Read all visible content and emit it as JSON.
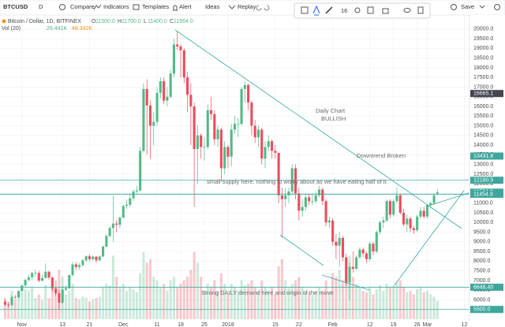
{
  "toolbar": {
    "symbol": "BTCUSD",
    "interval": "D",
    "items": [
      "Compare",
      "Indicators",
      "Templates",
      "Alert",
      "Ideas",
      "Replay"
    ],
    "save": "Save",
    "font_size": "16"
  },
  "chart_data": {
    "type": "candlestick",
    "legend": {
      "symbol": "Bitcoin / Dollar, 1D, BITFINEX",
      "ohlc": [
        {
          "key": "O",
          "text": "11500.0"
        },
        {
          "key": "H",
          "text": "11700.0"
        },
        {
          "key": "L",
          "text": "11400.0"
        },
        {
          "key": "C",
          "text": "11564.0"
        }
      ],
      "volume": "Vol (20)",
      "volume_values": [
        "26.441K",
        "48.342K"
      ]
    },
    "up_color": "#53b987",
    "down_color": "#eb4d5c",
    "xlim": [
      -1.5,
      137.5
    ],
    "ylim": [
      5000,
      20400
    ],
    "xticks": [
      {
        "value": 5,
        "label": "Nov"
      },
      {
        "value": 17,
        "label": "13"
      },
      {
        "value": 25,
        "label": "21"
      },
      {
        "value": 35,
        "label": "Dec"
      },
      {
        "value": 45,
        "label": "11"
      },
      {
        "value": 52,
        "label": "18"
      },
      {
        "value": 59,
        "label": "25"
      },
      {
        "value": 66,
        "label": "2018"
      },
      {
        "value": 80,
        "label": "15"
      },
      {
        "value": 87,
        "label": "22"
      },
      {
        "value": 97,
        "label": "Feb"
      },
      {
        "value": 108,
        "label": "12"
      },
      {
        "value": 115,
        "label": "19"
      },
      {
        "value": 122,
        "label": "26"
      },
      {
        "value": 125,
        "label": "Mar"
      },
      {
        "value": 136,
        "label": "12"
      }
    ],
    "yticks": [
      {
        "value": 5500,
        "label": "5500.0"
      },
      {
        "value": 6000,
        "label": "6000.0"
      },
      {
        "value": 6500,
        "label": "6500.0"
      },
      {
        "value": 7000,
        "label": "7000.0"
      },
      {
        "value": 7500,
        "label": "7500.0"
      },
      {
        "value": 8000,
        "label": "8000.0"
      },
      {
        "value": 8500,
        "label": "8500.0"
      },
      {
        "value": 9000,
        "label": "9000.0"
      },
      {
        "value": 9500,
        "label": "9500.0"
      },
      {
        "value": 10000,
        "label": "10000.0"
      },
      {
        "value": 10500,
        "label": "10500.0"
      },
      {
        "value": 11000,
        "label": "11000.0"
      },
      {
        "value": 11500,
        "label": "11500.0"
      },
      {
        "value": 12000,
        "label": "12000.0"
      },
      {
        "value": 12500,
        "label": "12500.0"
      },
      {
        "value": 13000,
        "label": "13000.0"
      },
      {
        "value": 13500,
        "label": "13500.0"
      },
      {
        "value": 14000,
        "label": "14000.0"
      },
      {
        "value": 14500,
        "label": "14500.0"
      },
      {
        "value": 15000,
        "label": "15000.0"
      },
      {
        "value": 15500,
        "label": "15500.0"
      },
      {
        "value": 16000,
        "label": "16000.0"
      },
      {
        "value": 16500,
        "label": "16500.0"
      },
      {
        "value": 17000,
        "label": "17000.0"
      },
      {
        "value": 17500,
        "label": "17500.0"
      },
      {
        "value": 18000,
        "label": "18000.0"
      },
      {
        "value": 18500,
        "label": "18500.0"
      },
      {
        "value": 19000,
        "label": "19000.0"
      },
      {
        "value": 19500,
        "label": "19500.0"
      },
      {
        "value": 20000,
        "label": "20000.0"
      }
    ],
    "price_labels": [
      {
        "value": 16665.1,
        "label": "16665.1",
        "color": "#434651",
        "line": false
      },
      {
        "value": 13431.8,
        "label": "13431.8",
        "color": "#3ea69c",
        "line": false
      },
      {
        "value": 12180.5,
        "label": "12180.5",
        "color": "#3ea69c",
        "line": true
      },
      {
        "value": 11564.0,
        "label": "11564.0",
        "color": "#3ea69c",
        "line": false
      },
      {
        "value": 11454.9,
        "label": "11454.9",
        "color": "#3ea69c",
        "line": true
      },
      {
        "value": 6648.4,
        "label": "6648.40",
        "color": "#3ea69c",
        "line": true
      },
      {
        "value": 5500.0,
        "label": "5500.0",
        "color": "#3ea69c",
        "line": true
      }
    ],
    "annotations": [
      "Daily Chart",
      "BULLISH",
      "Downtrend Broken",
      "small supply here. nothing to worry about as we have eating half of it",
      "Strong DAILY demand here and origin of the move"
    ],
    "candles": [
      [
        5900,
        6000,
        5680,
        5750
      ],
      [
        5750,
        5850,
        5600,
        5720
      ],
      [
        5720,
        6250,
        5700,
        6150
      ],
      [
        6150,
        6250,
        6050,
        6120
      ],
      [
        6120,
        6480,
        6100,
        6450
      ],
      [
        6450,
        6800,
        6400,
        6740
      ],
      [
        6740,
        7100,
        6700,
        7030
      ],
      [
        7030,
        7300,
        6950,
        7160
      ],
      [
        7160,
        7450,
        7000,
        7380
      ],
      [
        7380,
        7550,
        7200,
        7390
      ],
      [
        7390,
        7500,
        6900,
        6990
      ],
      [
        6990,
        7300,
        6950,
        7130
      ],
      [
        7130,
        7880,
        7100,
        7450
      ],
      [
        7450,
        7500,
        7050,
        7150
      ],
      [
        7150,
        7200,
        6450,
        6580
      ],
      [
        6580,
        6650,
        6200,
        6340
      ],
      [
        6340,
        6500,
        5500,
        5850
      ],
      [
        5850,
        6700,
        5800,
        6520
      ],
      [
        6520,
        6750,
        6450,
        6600
      ],
      [
        6600,
        7300,
        6550,
        7280
      ],
      [
        7280,
        7950,
        7200,
        7830
      ],
      [
        7830,
        7950,
        7550,
        7690
      ],
      [
        7690,
        7900,
        7550,
        7790
      ],
      [
        7790,
        8100,
        7700,
        8040
      ],
      [
        8040,
        8300,
        7950,
        8250
      ],
      [
        8250,
        8350,
        8000,
        8100
      ],
      [
        8100,
        8300,
        8050,
        8230
      ],
      [
        8230,
        8250,
        7900,
        8040
      ],
      [
        8040,
        8300,
        8000,
        8240
      ],
      [
        8240,
        8800,
        8200,
        8750
      ],
      [
        8750,
        9400,
        8700,
        9300
      ],
      [
        9300,
        9800,
        9250,
        9710
      ],
      [
        9710,
        11400,
        9000,
        9940
      ],
      [
        9940,
        10100,
        9500,
        9880
      ],
      [
        9880,
        10300,
        9700,
        10250
      ],
      [
        10250,
        10900,
        10200,
        10850
      ],
      [
        10850,
        11200,
        10700,
        10910
      ],
      [
        10910,
        11500,
        10800,
        11250
      ],
      [
        11250,
        11700,
        11100,
        11600
      ],
      [
        11600,
        11900,
        11500,
        11650
      ],
      [
        11650,
        13900,
        11600,
        13700
      ],
      [
        13700,
        17200,
        13600,
        16900
      ],
      [
        16900,
        17400,
        13500,
        16050
      ],
      [
        16050,
        16300,
        13300,
        15000
      ],
      [
        15000,
        15700,
        14000,
        15200
      ],
      [
        15200,
        17000,
        15000,
        16700
      ],
      [
        16700,
        17500,
        16400,
        17300
      ],
      [
        17300,
        17500,
        16100,
        16300
      ],
      [
        16300,
        17000,
        16000,
        16500
      ],
      [
        16500,
        17900,
        16400,
        17700
      ],
      [
        17700,
        19500,
        17500,
        19200
      ],
      [
        19200,
        19900,
        18900,
        19100
      ],
      [
        19100,
        19200,
        17500,
        18900
      ],
      [
        18900,
        19000,
        17200,
        17500
      ],
      [
        17500,
        17800,
        15700,
        16600
      ],
      [
        16600,
        17200,
        14000,
        16000
      ],
      [
        16000,
        16200,
        10800,
        13800
      ],
      [
        13800,
        15000,
        12000,
        14500
      ],
      [
        14500,
        14600,
        13300,
        13900
      ],
      [
        13900,
        14400,
        13200,
        13900
      ],
      [
        13900,
        16100,
        13800,
        15800
      ],
      [
        15800,
        16500,
        15300,
        15600
      ],
      [
        15600,
        15800,
        14000,
        14300
      ],
      [
        14300,
        15000,
        13900,
        14800
      ],
      [
        14800,
        14900,
        12100,
        12800
      ],
      [
        12800,
        14200,
        12500,
        13900
      ],
      [
        13900,
        14000,
        12800,
        13400
      ],
      [
        13400,
        15100,
        12900,
        14800
      ],
      [
        14800,
        15500,
        14600,
        15100
      ],
      [
        15100,
        15400,
        14400,
        15100
      ],
      [
        15100,
        17000,
        15000,
        16900
      ],
      [
        16900,
        17300,
        16200,
        17100
      ],
      [
        17100,
        17200,
        15800,
        16200
      ],
      [
        16200,
        16300,
        14500,
        15000
      ],
      [
        15000,
        15300,
        14100,
        14400
      ],
      [
        14400,
        15000,
        13900,
        14800
      ],
      [
        14800,
        14900,
        13000,
        13300
      ],
      [
        13300,
        14200,
        12800,
        13900
      ],
      [
        13900,
        14500,
        13700,
        14200
      ],
      [
        14200,
        14300,
        13300,
        13700
      ],
      [
        13700,
        14000,
        13300,
        13600
      ],
      [
        13600,
        13600,
        11000,
        11400
      ],
      [
        11400,
        11800,
        9200,
        11200
      ],
      [
        11200,
        11800,
        10800,
        11400
      ],
      [
        11400,
        11800,
        11000,
        11600
      ],
      [
        11600,
        13000,
        11500,
        12800
      ],
      [
        12800,
        13000,
        11200,
        11500
      ],
      [
        11500,
        11800,
        10100,
        10600
      ],
      [
        10600,
        11200,
        10300,
        10800
      ],
      [
        10800,
        11500,
        10600,
        11300
      ],
      [
        11300,
        11500,
        10900,
        11100
      ],
      [
        11100,
        11500,
        10900,
        11100
      ],
      [
        11100,
        11600,
        11000,
        11400
      ],
      [
        11400,
        11900,
        11300,
        11700
      ],
      [
        11700,
        11800,
        10900,
        11100
      ],
      [
        11100,
        11200,
        9800,
        10000
      ],
      [
        10000,
        10300,
        9700,
        10100
      ],
      [
        10100,
        10200,
        8800,
        9000
      ],
      [
        9000,
        9400,
        8100,
        8800
      ],
      [
        8800,
        9500,
        7700,
        9200
      ],
      [
        9200,
        9300,
        8000,
        8200
      ],
      [
        8200,
        8400,
        6700,
        6900
      ],
      [
        6900,
        7900,
        6000,
        7700
      ],
      [
        7700,
        8500,
        7400,
        7600
      ],
      [
        7600,
        8300,
        7550,
        8200
      ],
      [
        8200,
        8700,
        8100,
        8600
      ],
      [
        8600,
        8700,
        8200,
        8400
      ],
      [
        8400,
        8500,
        7900,
        8100
      ],
      [
        8100,
        9000,
        8000,
        8900
      ],
      [
        8900,
        9000,
        8300,
        8500
      ],
      [
        8500,
        9600,
        8400,
        9500
      ],
      [
        9500,
        10100,
        9400,
        10000
      ],
      [
        10000,
        10300,
        9700,
        10100
      ],
      [
        10100,
        11200,
        10000,
        11100
      ],
      [
        11100,
        11200,
        10200,
        10400
      ],
      [
        10400,
        11200,
        10300,
        11100
      ],
      [
        11100,
        11800,
        11000,
        11400
      ],
      [
        11400,
        11500,
        10400,
        10500
      ],
      [
        10500,
        10700,
        9800,
        9900
      ],
      [
        9900,
        10400,
        9500,
        10200
      ],
      [
        10200,
        10300,
        9500,
        9700
      ],
      [
        9700,
        9800,
        9400,
        9600
      ],
      [
        9600,
        10400,
        9500,
        10300
      ],
      [
        10300,
        10800,
        10200,
        10600
      ],
      [
        10600,
        10800,
        10200,
        10300
      ],
      [
        10300,
        10950,
        10200,
        10900
      ],
      [
        10900,
        11100,
        10700,
        11000
      ],
      [
        11000,
        11500,
        10900,
        11400
      ],
      [
        11500,
        11700,
        11400,
        11564
      ]
    ],
    "volume": [
      30,
      25,
      40,
      28,
      35,
      38,
      42,
      40,
      45,
      30,
      35,
      28,
      48,
      30,
      45,
      55,
      70,
      60,
      35,
      40,
      50,
      30,
      28,
      32,
      30,
      25,
      28,
      30,
      32,
      45,
      50,
      48,
      90,
      60,
      45,
      50,
      40,
      45,
      42,
      38,
      65,
      95,
      80,
      85,
      60,
      55,
      45,
      50,
      40,
      55,
      60,
      45,
      50,
      55,
      60,
      70,
      95,
      80,
      60,
      40,
      50,
      45,
      55,
      40,
      65,
      50,
      35,
      50,
      45,
      40,
      55,
      48,
      50,
      55,
      45,
      40,
      55,
      45,
      40,
      45,
      35,
      75,
      85,
      55,
      45,
      50,
      55,
      60,
      45,
      40,
      38,
      35,
      40,
      45,
      40,
      55,
      40,
      65,
      60,
      70,
      55,
      85,
      90,
      60,
      50,
      45,
      40,
      38,
      45,
      35,
      42,
      48,
      40,
      50,
      45,
      48,
      52,
      55,
      45,
      38,
      40,
      35,
      42,
      45,
      38,
      40,
      35,
      32,
      26
    ]
  }
}
